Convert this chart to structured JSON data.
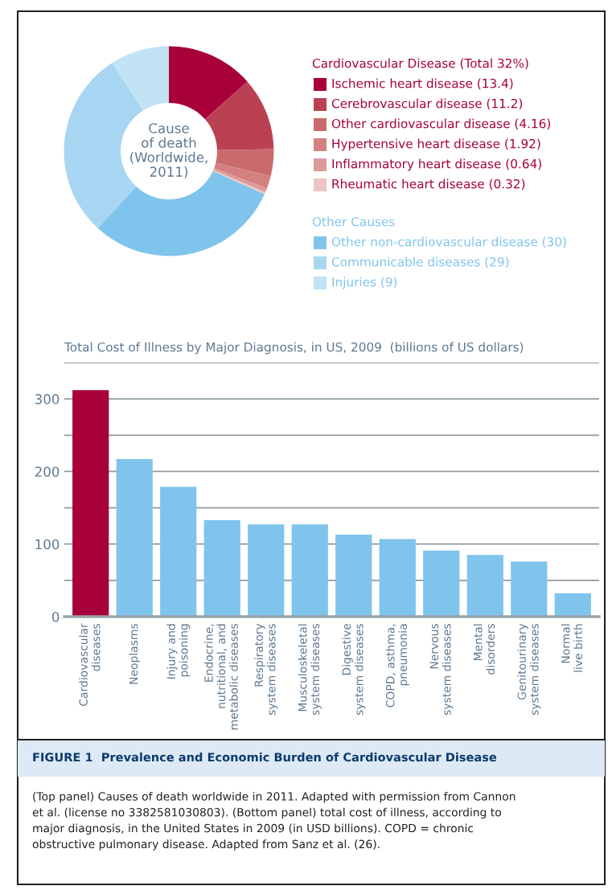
{
  "chart_data": [
    {
      "type": "donut",
      "title": "Cause\nof death\n(Worldwide,\n2011)",
      "legend": "right",
      "categories": [
        "Ischemic heart disease (13.4)",
        "Cerebrovascular disease (11.2)",
        "Other cardiovascular disease (4.16)",
        "Hypertensive heart disease (1.92)",
        "Inflammatory heart disease (0.64)",
        "Rheumatic heart disease (0.32)",
        "Other non-cardiovascular disease (30)",
        "Communicable diseases (29)",
        "Injuries (9)"
      ],
      "values": [
        13.4,
        11.2,
        4.16,
        1.92,
        0.64,
        0.32,
        30,
        29,
        9
      ],
      "colors": [
        "#a8003a",
        "#bb4152",
        "#c96a6c",
        "#d48080",
        "#dd9a9a",
        "#efc4c4",
        "#7fc4ec",
        "#a8d6f2",
        "#c2e2f5"
      ],
      "annotations": [
        "Cardiovascular Disease (Total 32%)",
        "Other Causes"
      ]
    },
    {
      "type": "bar",
      "title": "Total Cost of Illness by Major Diagnosis, in US, 2009  (billions of US dollars)",
      "grid": "y",
      "categories": [
        "Cardiovascular\ndiseases",
        "Neoplasms",
        "Injury and\npoisoning",
        "Endocrine,\nnutritional, and\nmetabolic diseases",
        "Respiratory\nsystem diseases",
        "Musculoskeletal\nsystem diseases",
        "Digestive\nsystem diseases",
        "COPD, asthma,\npneumonia",
        "Nervous\nsystem diseases",
        "Mental\ndisorders",
        "Genitourinary\nsystem diseases",
        "Normal\nlive birth"
      ],
      "values": [
        312,
        217,
        179,
        133,
        127,
        127,
        113,
        107,
        91,
        85,
        76,
        32
      ],
      "colors": [
        "#a8003a",
        "#7fc4ec",
        "#7fc4ec",
        "#7fc4ec",
        "#7fc4ec",
        "#7fc4ec",
        "#7fc4ec",
        "#7fc4ec",
        "#7fc4ec",
        "#7fc4ec",
        "#7fc4ec",
        "#7fc4ec"
      ],
      "ylim": [
        0,
        350
      ],
      "yticks": [
        0,
        {
          "value": 50,
          "label": null
        },
        100,
        {
          "value": 150,
          "label": null
        },
        200,
        {
          "value": 250,
          "label": null
        },
        300,
        {
          "value": 350,
          "label": null
        }
      ],
      "annotations": [
        "FIGURE 1  Prevalence and Economic Burden of Cardiovascular Disease",
        "(Top panel) Causes of death worldwide in 2011. Adapted with permission from Cannon et al. (license no 3382581030803). (Bottom panel) total cost of illness, according to major diagnosis, in the United States in 2009 (in USD billions). COPD = chronic obstructive pulmonary disease. Adapted from Sanz et al. (26)."
      ]
    }
  ]
}
